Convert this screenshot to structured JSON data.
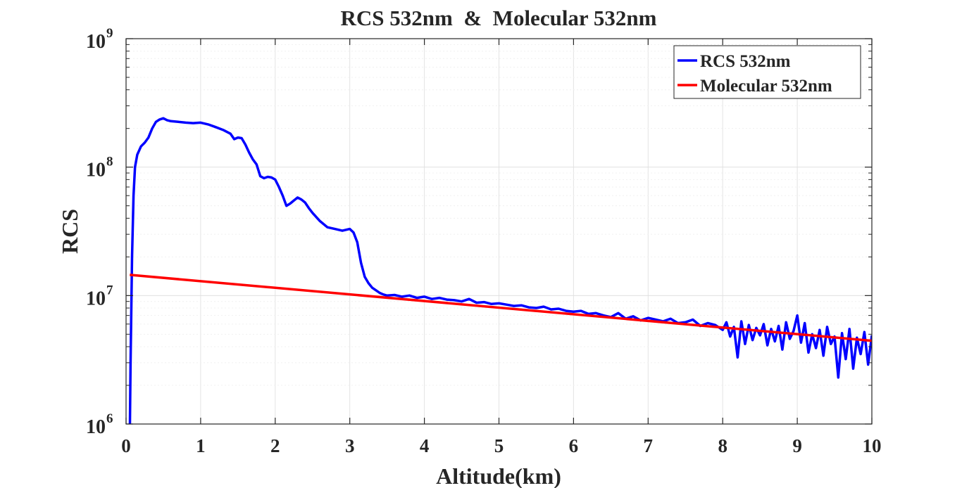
{
  "chart_data": {
    "type": "line",
    "title": "RCS 532nm  &  Molecular 532nm",
    "xlabel": "Altitude(km)",
    "ylabel": "RCS",
    "xlim": [
      0,
      10
    ],
    "ylim": [
      1000000,
      1000000000
    ],
    "y_scale": "log",
    "grid": true,
    "legend_position": "top-right",
    "x_ticks": [
      {
        "value": 0,
        "label": "0"
      },
      {
        "value": 1,
        "label": "1"
      },
      {
        "value": 2,
        "label": "2"
      },
      {
        "value": 3,
        "label": "3"
      },
      {
        "value": 4,
        "label": "4"
      },
      {
        "value": 5,
        "label": "5"
      },
      {
        "value": 6,
        "label": "6"
      },
      {
        "value": 7,
        "label": "7"
      },
      {
        "value": 8,
        "label": "8"
      },
      {
        "value": 9,
        "label": "9"
      },
      {
        "value": 10,
        "label": "10"
      }
    ],
    "y_ticks": [
      {
        "value": 1000000,
        "base": "10",
        "exp": "6"
      },
      {
        "value": 10000000,
        "base": "10",
        "exp": "7"
      },
      {
        "value": 100000000,
        "base": "10",
        "exp": "8"
      },
      {
        "value": 1000000000,
        "base": "10",
        "exp": "9"
      }
    ],
    "series": [
      {
        "name": "RCS 532nm",
        "color": "#0000ff",
        "x": [
          0.05,
          0.06,
          0.08,
          0.1,
          0.12,
          0.15,
          0.2,
          0.25,
          0.3,
          0.35,
          0.4,
          0.45,
          0.5,
          0.55,
          0.6,
          0.7,
          0.8,
          0.9,
          1.0,
          1.1,
          1.2,
          1.3,
          1.4,
          1.45,
          1.5,
          1.55,
          1.6,
          1.65,
          1.7,
          1.75,
          1.8,
          1.85,
          1.9,
          1.95,
          2.0,
          2.05,
          2.1,
          2.15,
          2.2,
          2.25,
          2.3,
          2.35,
          2.4,
          2.45,
          2.5,
          2.6,
          2.7,
          2.8,
          2.9,
          3.0,
          3.05,
          3.1,
          3.15,
          3.2,
          3.25,
          3.3,
          3.35,
          3.4,
          3.45,
          3.5,
          3.6,
          3.7,
          3.8,
          3.9,
          4.0,
          4.1,
          4.2,
          4.3,
          4.4,
          4.5,
          4.6,
          4.7,
          4.8,
          4.9,
          5.0,
          5.1,
          5.2,
          5.3,
          5.4,
          5.5,
          5.6,
          5.7,
          5.8,
          5.9,
          6.0,
          6.1,
          6.2,
          6.3,
          6.4,
          6.5,
          6.6,
          6.7,
          6.8,
          6.9,
          7.0,
          7.1,
          7.2,
          7.3,
          7.4,
          7.5,
          7.6,
          7.7,
          7.8,
          7.9,
          8.0,
          8.05,
          8.1,
          8.15,
          8.2,
          8.25,
          8.3,
          8.35,
          8.4,
          8.45,
          8.5,
          8.55,
          8.6,
          8.65,
          8.7,
          8.75,
          8.8,
          8.85,
          8.9,
          8.95,
          9.0,
          9.05,
          9.1,
          9.15,
          9.2,
          9.25,
          9.3,
          9.35,
          9.4,
          9.45,
          9.5,
          9.55,
          9.6,
          9.65,
          9.7,
          9.75,
          9.8,
          9.85,
          9.9,
          9.95,
          10.0
        ],
        "y": [
          800000,
          3000000,
          20000000,
          60000000,
          100000000,
          125000000,
          145000000,
          155000000,
          170000000,
          200000000,
          225000000,
          235000000,
          240000000,
          232000000,
          228000000,
          225000000,
          222000000,
          220000000,
          222000000,
          215000000,
          205000000,
          195000000,
          182000000,
          165000000,
          170000000,
          168000000,
          150000000,
          130000000,
          115000000,
          105000000,
          85000000,
          82000000,
          84000000,
          83000000,
          80000000,
          70000000,
          60000000,
          50000000,
          52000000,
          55000000,
          58000000,
          56000000,
          53000000,
          48000000,
          44000000,
          38000000,
          34000000,
          33000000,
          32000000,
          33000000,
          31000000,
          26000000,
          18000000,
          14000000,
          12500000,
          11500000,
          11000000,
          10500000,
          10200000,
          10000000,
          10100000,
          9800000,
          10000000,
          9600000,
          9800000,
          9400000,
          9600000,
          9300000,
          9200000,
          9000000,
          9400000,
          8800000,
          8900000,
          8600000,
          8700000,
          8500000,
          8300000,
          8400000,
          8100000,
          8000000,
          8200000,
          7800000,
          7900000,
          7600000,
          7500000,
          7600000,
          7200000,
          7300000,
          7000000,
          6800000,
          7300000,
          6600000,
          6900000,
          6400000,
          6700000,
          6500000,
          6300000,
          6600000,
          6100000,
          6200000,
          6500000,
          5800000,
          6100000,
          5900000,
          5400000,
          6200000,
          4800000,
          5700000,
          3300000,
          6300000,
          4200000,
          5900000,
          4500000,
          5600000,
          4900000,
          6000000,
          4100000,
          5500000,
          4400000,
          5800000,
          3800000,
          6200000,
          4600000,
          5300000,
          7000000,
          4300000,
          6100000,
          3600000,
          5000000,
          3900000,
          5400000,
          3400000,
          5700000,
          4200000,
          4800000,
          2300000,
          5100000,
          3200000,
          5500000,
          2700000,
          4700000,
          3500000,
          5200000,
          2900000,
          4900000
        ]
      },
      {
        "name": "Molecular 532nm",
        "color": "#ff0000",
        "x": [
          0.05,
          10.0
        ],
        "y": [
          14500000,
          4450000
        ]
      }
    ]
  }
}
